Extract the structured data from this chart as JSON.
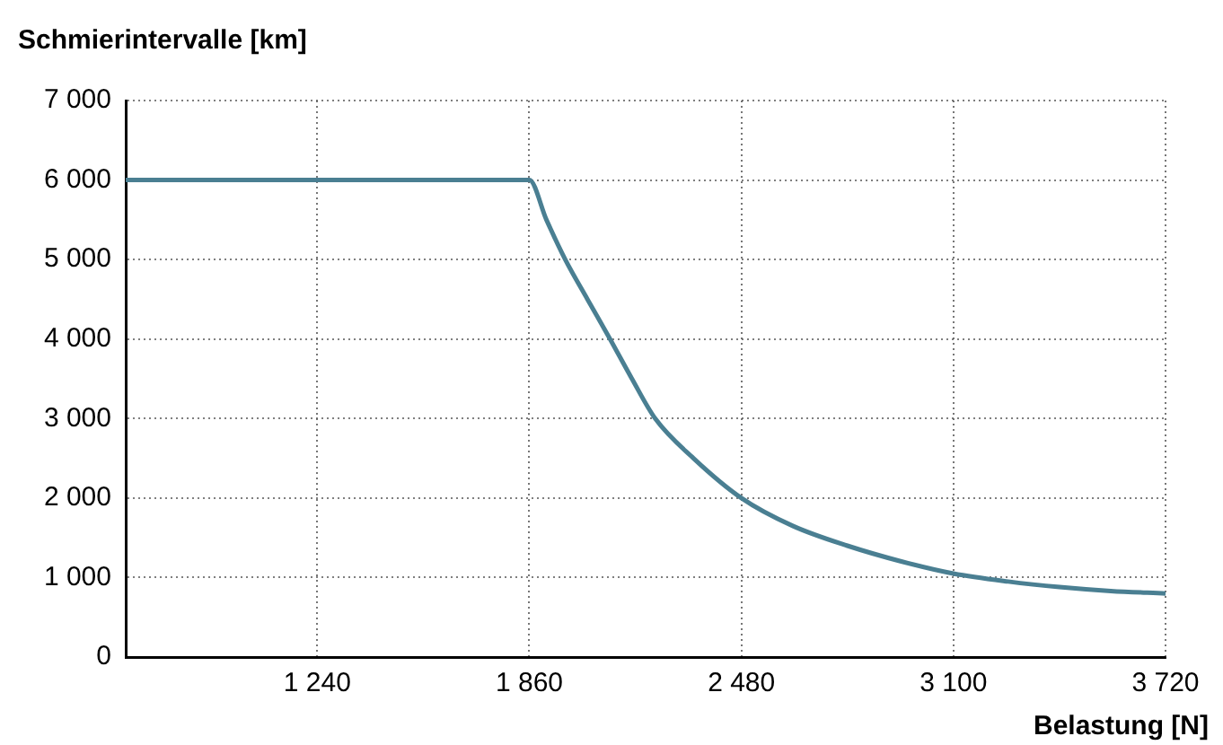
{
  "chart_data": {
    "type": "line",
    "xlabel": "Belastung [N]",
    "ylabel": "Schmierintervalle [km]",
    "x": [
      680,
      1860,
      1910,
      1965,
      2030,
      2096,
      2160,
      2228,
      2340,
      2480,
      2630,
      2790,
      2950,
      3100,
      3260,
      3410,
      3560,
      3720
    ],
    "series": [
      {
        "color": "#4a7f92",
        "values": [
          6000,
          6000,
          5500,
          5000,
          4500,
          4000,
          3500,
          3000,
          2500,
          2000,
          1650,
          1400,
          1200,
          1050,
          950,
          880,
          830,
          800
        ]
      }
    ],
    "xlim": [
      680,
      3720
    ],
    "xticks": [
      {
        "value": 1240,
        "label": "1 240"
      },
      {
        "value": 1860,
        "label": "1 860"
      },
      {
        "value": 2480,
        "label": "2 480"
      },
      {
        "value": 3100,
        "label": "3 100"
      },
      {
        "value": 3720,
        "label": "3 720"
      }
    ],
    "ylim": [
      0,
      7000
    ],
    "yticks": [
      0,
      {
        "value": 1000,
        "label": "1 000"
      },
      {
        "value": 2000,
        "label": "2 000"
      },
      {
        "value": 3000,
        "label": "3 000"
      },
      {
        "value": 4000,
        "label": "4 000"
      },
      {
        "value": 5000,
        "label": "5 000"
      },
      {
        "value": 6000,
        "label": "6 000"
      },
      {
        "value": 7000,
        "label": "7 000"
      }
    ],
    "grid": true,
    "marker": "none",
    "line_style": "solid",
    "legend": false
  }
}
